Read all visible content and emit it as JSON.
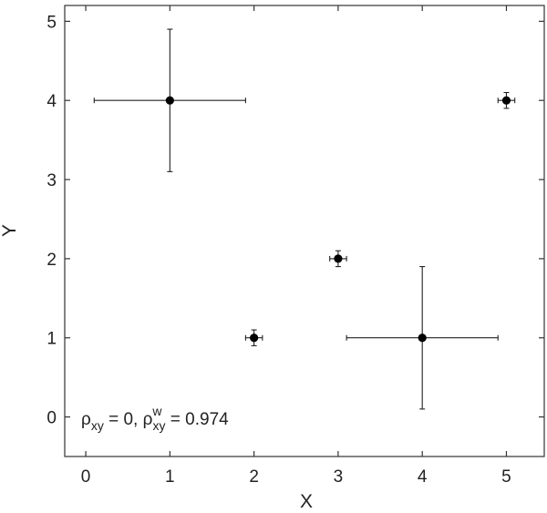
{
  "chart_data": {
    "type": "scatter",
    "xlabel": "X",
    "ylabel": "Y",
    "xlim": [
      -0.25,
      5.45
    ],
    "ylim": [
      -0.5,
      5.2
    ],
    "xticks": [
      "0",
      "1",
      "2",
      "3",
      "4",
      "5"
    ],
    "yticks": [
      "0",
      "1",
      "2",
      "3",
      "4",
      "5"
    ],
    "grid": false,
    "points": [
      {
        "x": 1,
        "y": 4,
        "xerr": 0.9,
        "yerr": 0.9
      },
      {
        "x": 2,
        "y": 1,
        "xerr": 0.1,
        "yerr": 0.1
      },
      {
        "x": 3,
        "y": 2,
        "xerr": 0.1,
        "yerr": 0.1
      },
      {
        "x": 4,
        "y": 1,
        "xerr": 0.9,
        "yerr": 0.9
      },
      {
        "x": 5,
        "y": 4,
        "xerr": 0.1,
        "yerr": 0.1
      }
    ],
    "annotation": {
      "rho": "ρ",
      "sub1": "xy",
      "mid": " = 0, ρ",
      "sup": "w",
      "sub2": "xy",
      "tail": " = 0.974"
    }
  }
}
